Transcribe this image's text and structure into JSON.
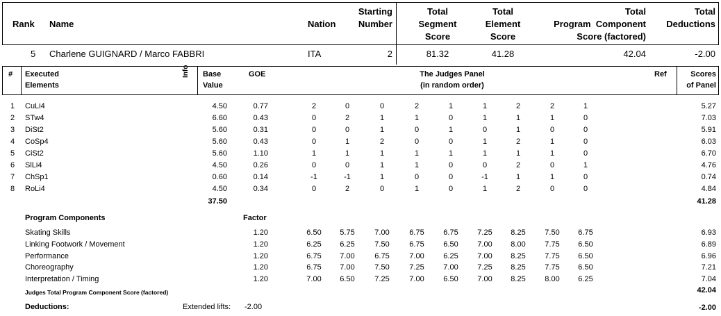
{
  "header": {
    "rank": "Rank",
    "name": "Name",
    "nation": "Nation",
    "starting_number": [
      "Starting",
      "Number"
    ],
    "total_segment_score": [
      "Total",
      "Segment",
      "Score"
    ],
    "total_element_score": [
      "Total",
      "Element",
      "Score"
    ],
    "total_pcs": [
      "Total",
      "Program  Component",
      "Score (factored)"
    ],
    "total_deductions": [
      "Total",
      "Deductions"
    ]
  },
  "skater": {
    "rank": "5",
    "name": "Charlene GUIGNARD / Marco FABBRI",
    "nation": "ITA",
    "starting_number": "2",
    "total_segment_score": "81.32",
    "total_element_score": "41.28",
    "total_pcs": "42.04",
    "total_deductions": "-2.00"
  },
  "elements_header": {
    "num": "#",
    "executed": [
      "Executed",
      "Elements"
    ],
    "info": "Info",
    "base": [
      "Base",
      "Value"
    ],
    "goe": "GOE",
    "panel": [
      "The Judges Panel",
      "(in random order)"
    ],
    "ref": "Ref",
    "scores": [
      "Scores",
      "of Panel"
    ]
  },
  "elements": [
    {
      "num": "1",
      "name": "CuLi4",
      "base": "4.50",
      "goe": "0.77",
      "judges": [
        "2",
        "0",
        "0",
        "2",
        "1",
        "1",
        "2",
        "2",
        "1"
      ],
      "score": "5.27"
    },
    {
      "num": "2",
      "name": "STw4",
      "base": "6.60",
      "goe": "0.43",
      "judges": [
        "0",
        "2",
        "1",
        "1",
        "0",
        "1",
        "1",
        "1",
        "0"
      ],
      "score": "7.03"
    },
    {
      "num": "3",
      "name": "DiSt2",
      "base": "5.60",
      "goe": "0.31",
      "judges": [
        "0",
        "0",
        "1",
        "0",
        "1",
        "0",
        "1",
        "0",
        "0"
      ],
      "score": "5.91"
    },
    {
      "num": "4",
      "name": "CoSp4",
      "base": "5.60",
      "goe": "0.43",
      "judges": [
        "0",
        "1",
        "2",
        "0",
        "0",
        "1",
        "2",
        "1",
        "0"
      ],
      "score": "6.03"
    },
    {
      "num": "5",
      "name": "CiSt2",
      "base": "5.60",
      "goe": "1.10",
      "judges": [
        "1",
        "1",
        "1",
        "1",
        "1",
        "1",
        "1",
        "1",
        "0"
      ],
      "score": "6.70"
    },
    {
      "num": "6",
      "name": "SlLi4",
      "base": "4.50",
      "goe": "0.26",
      "judges": [
        "0",
        "0",
        "1",
        "1",
        "0",
        "0",
        "2",
        "0",
        "1"
      ],
      "score": "4.76"
    },
    {
      "num": "7",
      "name": "ChSp1",
      "base": "0.60",
      "goe": "0.14",
      "judges": [
        "-1",
        "-1",
        "1",
        "0",
        "0",
        "-1",
        "1",
        "1",
        "0"
      ],
      "score": "0.74"
    },
    {
      "num": "8",
      "name": "RoLi4",
      "base": "4.50",
      "goe": "0.34",
      "judges": [
        "0",
        "2",
        "0",
        "1",
        "0",
        "1",
        "2",
        "0",
        "0"
      ],
      "score": "4.84"
    }
  ],
  "elements_totals": {
    "base": "37.50",
    "score": "41.28"
  },
  "components_header": {
    "title": "Program Components",
    "factor": "Factor"
  },
  "components": [
    {
      "name": "Skating Skills",
      "factor": "1.20",
      "judges": [
        "6.50",
        "5.75",
        "7.00",
        "6.75",
        "6.75",
        "7.25",
        "8.25",
        "7.50",
        "6.75"
      ],
      "score": "6.93"
    },
    {
      "name": "Linking Footwork / Movement",
      "factor": "1.20",
      "judges": [
        "6.25",
        "6.25",
        "7.50",
        "6.75",
        "6.50",
        "7.00",
        "8.00",
        "7.75",
        "6.50"
      ],
      "score": "6.89"
    },
    {
      "name": "Performance",
      "factor": "1.20",
      "judges": [
        "6.75",
        "7.00",
        "6.75",
        "7.00",
        "6.25",
        "7.00",
        "8.25",
        "7.75",
        "6.50"
      ],
      "score": "6.96"
    },
    {
      "name": "Choreography",
      "factor": "1.20",
      "judges": [
        "6.75",
        "7.00",
        "7.50",
        "7.25",
        "7.00",
        "7.25",
        "8.25",
        "7.75",
        "6.50"
      ],
      "score": "7.21"
    },
    {
      "name": "Interpretation / Timing",
      "factor": "1.20",
      "judges": [
        "7.00",
        "6.50",
        "7.25",
        "7.00",
        "6.50",
        "7.00",
        "8.25",
        "8.00",
        "6.25"
      ],
      "score": "7.04"
    }
  ],
  "components_total": {
    "label": "Judges Total Program Component Score (factored)",
    "score": "42.04"
  },
  "deductions": {
    "label": "Deductions:",
    "type": "Extended lifts:",
    "value": "-2.00",
    "total": "-2.00"
  }
}
